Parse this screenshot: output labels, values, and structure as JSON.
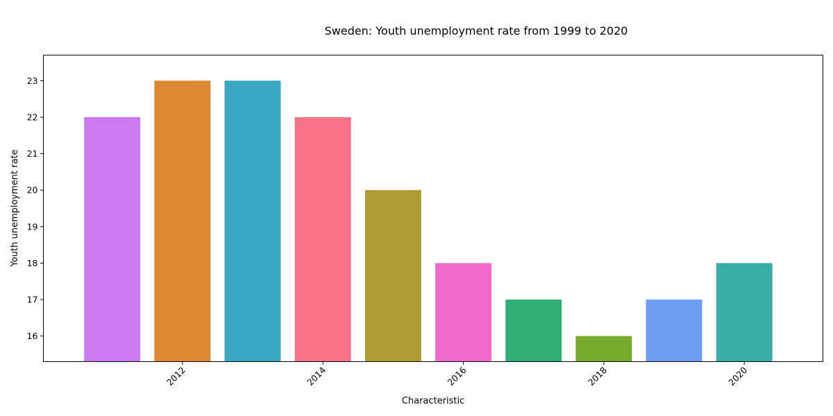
{
  "chart_data": {
    "type": "bar",
    "title": "Sweden: Youth unemployment rate from 1999 to 2020",
    "xlabel": "Characteristic",
    "ylabel": "Youth unemployment rate",
    "x": [
      2011,
      2012,
      2013,
      2014,
      2015,
      2016,
      2017,
      2018,
      2019,
      2020
    ],
    "values": [
      22,
      23,
      23,
      22,
      20,
      18,
      17,
      16,
      17,
      18
    ],
    "colors": [
      "#cc79f2",
      "#dd8833",
      "#3aa8c5",
      "#f67388",
      "#ae9d33",
      "#f569cf",
      "#33ae75",
      "#78aa2e",
      "#6d9cf3",
      "#38aca5"
    ],
    "x_ticks": [
      2012,
      2014,
      2016,
      2018,
      2020
    ],
    "y_ticks": [
      16,
      17,
      18,
      19,
      20,
      21,
      22,
      23
    ],
    "xlim": [
      2010.02,
      2021.12
    ],
    "ylim": [
      15.3,
      23.7
    ],
    "grid": false,
    "legend": "none"
  }
}
